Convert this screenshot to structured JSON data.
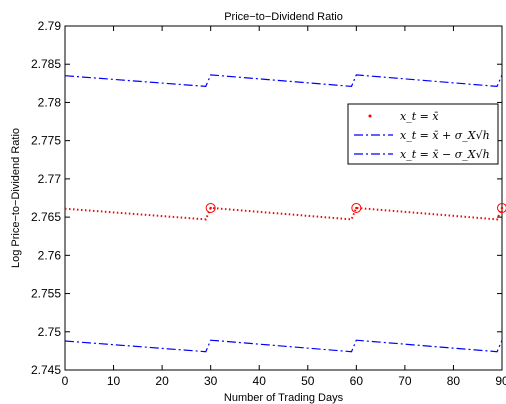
{
  "chart_data": {
    "type": "line",
    "title": "Price−to−Dividend Ratio",
    "xlabel": "Number of Trading Days",
    "ylabel": "Log Price−to−Dividend Ratio",
    "xlim": [
      0,
      90
    ],
    "ylim": [
      2.745,
      2.79
    ],
    "xticks": [
      0,
      10,
      20,
      30,
      40,
      50,
      60,
      70,
      80,
      90
    ],
    "xtick_labels": [
      "0",
      "10",
      "20",
      "30",
      "40",
      "50",
      "60",
      "70",
      "80",
      "90"
    ],
    "yticks": [
      2.745,
      2.75,
      2.755,
      2.76,
      2.765,
      2.77,
      2.775,
      2.78,
      2.785,
      2.79
    ],
    "ytick_labels": [
      "2.745",
      "2.75",
      "2.755",
      "2.76",
      "2.765",
      "2.77",
      "2.775",
      "2.78",
      "2.785",
      "2.79"
    ],
    "grid": false,
    "legend_position": "right",
    "series": [
      {
        "name": "x_t = x̄",
        "style": "dotted",
        "color": "#ff0000",
        "x": [
          0,
          29,
          30,
          59,
          60,
          89,
          90
        ],
        "y": [
          2.7661,
          2.7647,
          2.7662,
          2.7647,
          2.7662,
          2.7647,
          2.7662
        ]
      },
      {
        "name": "x_t = x̄ + σ_X√h",
        "style": "dashdot",
        "color": "#0000ff",
        "x": [
          0,
          29,
          30,
          59,
          60,
          89,
          90
        ],
        "y": [
          2.7835,
          2.7821,
          2.7836,
          2.7821,
          2.7836,
          2.7821,
          2.7836
        ]
      },
      {
        "name": "x_t = x̄ − σ_X√h",
        "style": "dashdot",
        "color": "#0000ff",
        "x": [
          0,
          29,
          30,
          59,
          60,
          89,
          90
        ],
        "y": [
          2.7488,
          2.7474,
          2.7489,
          2.7474,
          2.7489,
          2.7474,
          2.7489
        ]
      }
    ],
    "markers": {
      "color": "#ff0000",
      "points": [
        {
          "x": 30,
          "y": 2.7662
        },
        {
          "x": 60,
          "y": 2.7662
        },
        {
          "x": 90,
          "y": 2.7662
        }
      ]
    }
  }
}
